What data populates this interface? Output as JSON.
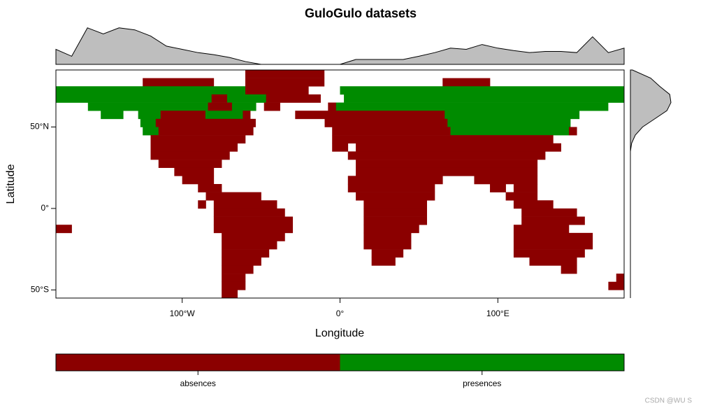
{
  "chart_data": {
    "type": "map",
    "title": "GuloGulo datasets",
    "x_label": "Longitude",
    "y_label": "Latitude",
    "xlim": [
      -180,
      180
    ],
    "ylim": [
      -55,
      85
    ],
    "xticks": [
      {
        "value": -100,
        "label": "100°W"
      },
      {
        "value": 0,
        "label": "0°"
      },
      {
        "value": 100,
        "label": "100°E"
      }
    ],
    "yticks": [
      {
        "value": 50,
        "label": "50°N"
      },
      {
        "value": 0,
        "label": "0°"
      },
      {
        "value": -50,
        "label": "50°S"
      }
    ],
    "legend": [
      {
        "name": "absences",
        "color": "#8b0000"
      },
      {
        "name": "presences",
        "color": "#008b00"
      }
    ],
    "raster": [
      "........................0000000000......................................",
      "...........000000000....0000000000...............000000.................",
      "11111111111111111111111100000000....111111111111111111111111111111111111",
      "1111111111111111111100111110000000...111111111111111111111111111111111111",
      "....111111111111111000111.00......01111111111111111111111111111111111..",
      "......111..111000000111110......00000000000000000000111111111111111111......",
      "...........110000000000000.........00000000000000001111111111111111.......",
      "...........11000000000000..........0000000000000001111111111111110......",
      "............000000000000...........0000000000000000000000000000.........",
      "............00000000000............00.00000000000000000000000000........",
      "............0000000000...............0000000000000000000000000..........",
      ".............00000000.................00000000000000000000000...........",
      "...............00000..................00000000000000000000000...........",
      "................0000.................000000000000....00000000...........",
      "..................000................00000000000.......00.000...........",
      "...................0000000............0000000000.........0000...........",
      "..................0.00000000...........00000000...........00000.........",
      "....................000000000..........00000000............0000000......",
      "....................0000000000.........00000000............00000000.....",
      "00..................0000000000.........0000000............0000000.......",
      ".....................00000000..........000000.............0000000000....",
      ".....................0000000...........000000.............0000000000....",
      ".....................000000.............0000..............000000000.....",
      ".....................00000..............000.................000000......",
      ".....................0000.......................................00......",
      ".....................000...............................................0",
      ".....................000..............................................00",
      ".....................00................................................."
    ],
    "top_density": {
      "x": [
        -180,
        -170,
        -160,
        -150,
        -140,
        -130,
        -120,
        -110,
        -100,
        -90,
        -80,
        -70,
        -60,
        -50,
        -40,
        -30,
        -20,
        -10,
        0,
        10,
        20,
        30,
        40,
        50,
        60,
        70,
        80,
        90,
        100,
        110,
        120,
        130,
        140,
        150,
        160,
        170,
        180
      ],
      "values": [
        0.37,
        0.2,
        0.9,
        0.75,
        0.9,
        0.85,
        0.7,
        0.45,
        0.37,
        0.29,
        0.24,
        0.17,
        0.07,
        0,
        0,
        0,
        0,
        0,
        0,
        0.12,
        0.12,
        0.12,
        0.12,
        0.2,
        0.29,
        0.4,
        0.37,
        0.49,
        0.4,
        0.34,
        0.29,
        0.32,
        0.32,
        0.29,
        0.68,
        0.29,
        0.4
      ],
      "ylim": [
        0,
        1
      ]
    },
    "right_density": {
      "y": [
        85,
        80,
        75,
        70,
        65,
        60,
        55,
        50,
        45,
        40,
        35,
        30,
        0,
        -55
      ],
      "values": [
        0.05,
        0.5,
        0.72,
        0.97,
        1,
        0.9,
        0.6,
        0.3,
        0.12,
        0.03,
        0,
        0,
        0,
        0
      ],
      "xlim": [
        0,
        1
      ]
    }
  },
  "watermark": "CSDN @WU S"
}
